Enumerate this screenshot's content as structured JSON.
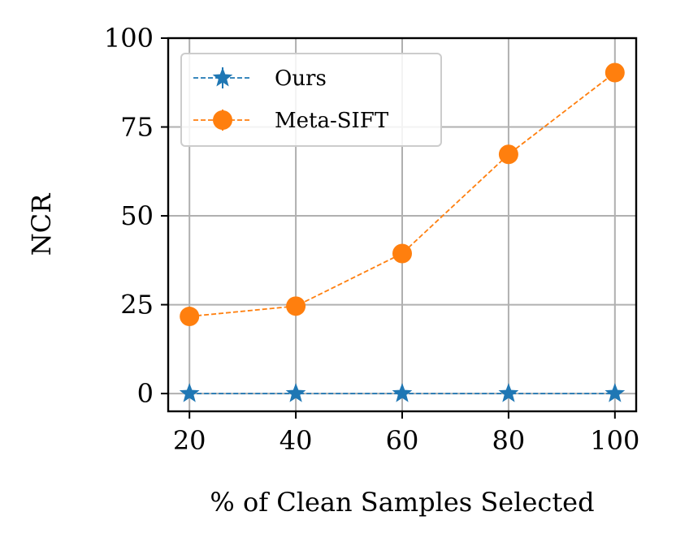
{
  "chart_data": {
    "type": "line",
    "x": [
      20,
      40,
      60,
      80,
      100
    ],
    "series": [
      {
        "name": "Ours",
        "values": [
          0,
          0,
          0,
          0,
          0
        ],
        "color": "#1f77b4",
        "marker": "star"
      },
      {
        "name": "Meta-SIFT",
        "values": [
          21.7,
          24.6,
          39.4,
          67.3,
          90.3
        ],
        "color": "#ff7f0e",
        "marker": "circle"
      }
    ],
    "title": "",
    "xlabel": "% of Clean Samples Selected",
    "ylabel": "NCR",
    "xlim": [
      16,
      104
    ],
    "ylim": [
      -5,
      100
    ],
    "xticks": [
      20,
      40,
      60,
      80,
      100
    ],
    "yticks": [
      0,
      25,
      50,
      75,
      100
    ],
    "xtick_labels": [
      "20",
      "40",
      "60",
      "80",
      "100"
    ],
    "ytick_labels": [
      "0",
      "25",
      "50",
      "75",
      "100"
    ],
    "grid": true,
    "legend_position": "top-left"
  }
}
